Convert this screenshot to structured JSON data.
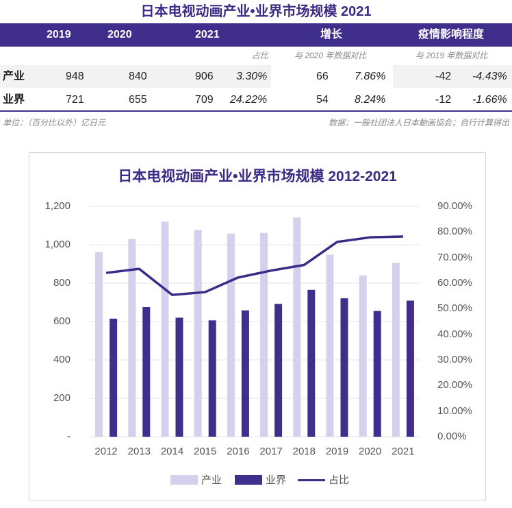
{
  "table": {
    "title": "日本电视动画产业•业界市场规模 2021",
    "headers": [
      "2019",
      "2020",
      "2021",
      "增长",
      "疫情影响程度"
    ],
    "subheaders": [
      "占比",
      "与 2020 年数据对比",
      "与 2019 年数据对比"
    ],
    "rows": [
      {
        "label": "产业",
        "y2019": "948",
        "y2020": "840",
        "y2021": "906",
        "share": "3.30%",
        "growth_abs": "66",
        "growth_pct": "7.86%",
        "impact_abs": "-42",
        "impact_pct": "-4.43%"
      },
      {
        "label": "业界",
        "y2019": "721",
        "y2020": "655",
        "y2021": "709",
        "share": "24.22%",
        "growth_abs": "54",
        "growth_pct": "8.24%",
        "impact_abs": "-12",
        "impact_pct": "-1.66%"
      }
    ],
    "footer_left": "单位：（百分比以外）亿日元",
    "footer_right": "数据：一般社团法人日本動画協会；自行计算得出"
  },
  "chart_data": {
    "type": "bar",
    "title": "日本电视动画产业•业界市场规模 2012-2021",
    "categories": [
      "2012",
      "2013",
      "2014",
      "2015",
      "2016",
      "2017",
      "2018",
      "2019",
      "2020",
      "2021"
    ],
    "series": [
      {
        "name": "产业",
        "kind": "bar",
        "color": "#d5d0ec",
        "values": [
          962,
          1030,
          1120,
          1077,
          1058,
          1062,
          1142,
          948,
          840,
          906
        ]
      },
      {
        "name": "业界",
        "kind": "bar",
        "color": "#3f2e8c",
        "values": [
          615,
          675,
          620,
          606,
          658,
          692,
          765,
          721,
          655,
          709
        ]
      },
      {
        "name": "占比",
        "kind": "line",
        "axis": "right",
        "color": "#3b2a86",
        "values": [
          64.0,
          65.6,
          55.4,
          56.5,
          62.2,
          64.9,
          67.1,
          76.1,
          77.9,
          78.2
        ]
      }
    ],
    "ylim": [
      0,
      1200
    ],
    "y_ticks": [
      "-",
      "200",
      "400",
      "600",
      "800",
      "1,000",
      "1,200"
    ],
    "y2lim": [
      0,
      90
    ],
    "y2_ticks": [
      "0.00%",
      "10.00%",
      "20.00%",
      "30.00%",
      "40.00%",
      "50.00%",
      "60.00%",
      "70.00%",
      "80.00%",
      "90.00%"
    ],
    "grid": true,
    "legend": "bottom"
  }
}
